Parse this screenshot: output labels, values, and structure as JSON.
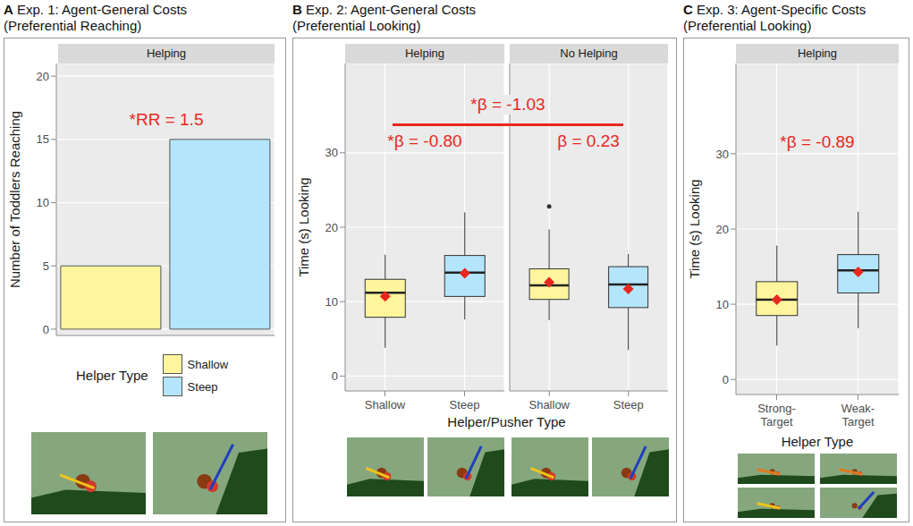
{
  "chart_data": [
    {
      "type": "bar",
      "label": "A",
      "title": "Exp. 1: Agent-General Costs",
      "subtitle": "(Preferential Reaching)",
      "facet": "Helping",
      "annotation": "*RR = 1.5",
      "ylabel": "Number of Toddlers Reaching",
      "categories": [
        "Shallow",
        "Steep"
      ],
      "values": [
        5,
        15
      ],
      "colors": [
        "#fff59d",
        "#b3e5fc"
      ],
      "ylim": [
        -0.5,
        21
      ],
      "yticks": [
        0,
        5,
        10,
        15,
        20
      ],
      "grid": true,
      "tick_labels": "y",
      "legend": "bottom",
      "legend_title": "Helper Type"
    },
    {
      "type": "boxplot",
      "label": "B",
      "title": "Exp. 2: Agent-General Costs",
      "subtitle": "(Preferential Looking)",
      "xlabel": "Helper/Pusher Type",
      "ylabel": "Time (s) Looking",
      "ylim": [
        -2,
        42
      ],
      "yticks": [
        0,
        10,
        20,
        30
      ],
      "grid": true,
      "colors": [
        "#fff59d",
        "#b3e5fc"
      ],
      "comparison": "*β = -1.03",
      "facets": [
        {
          "name": "Helping",
          "annotation": "*β = -0.80",
          "categories": [
            "Shallow",
            "Steep"
          ],
          "stats": [
            {
              "min": 3.8,
              "q1": 7.9,
              "median": 11.2,
              "q3": 13.0,
              "max": 16.3,
              "mean": 10.7,
              "outliers": []
            },
            {
              "min": 7.6,
              "q1": 10.7,
              "median": 13.9,
              "q3": 16.2,
              "max": 22.0,
              "mean": 13.8,
              "outliers": []
            }
          ]
        },
        {
          "name": "No Helping",
          "annotation": "β = 0.23",
          "categories": [
            "Shallow",
            "Steep"
          ],
          "stats": [
            {
              "min": 7.5,
              "q1": 10.3,
              "median": 12.2,
              "q3": 14.4,
              "max": 19.7,
              "mean": 12.6,
              "outliers": [
                22.8
              ]
            },
            {
              "min": 3.5,
              "q1": 9.2,
              "median": 12.3,
              "q3": 14.7,
              "max": 16.4,
              "mean": 11.7,
              "outliers": []
            }
          ]
        }
      ]
    },
    {
      "type": "boxplot",
      "label": "C",
      "title": "Exp. 3: Agent-Specific Costs",
      "subtitle": "(Preferential Looking)",
      "xlabel": "Helper Type",
      "ylabel": "Time (s) Looking",
      "ylim": [
        -2,
        42
      ],
      "yticks": [
        0,
        10,
        20,
        30
      ],
      "grid": true,
      "colors": [
        "#fff59d",
        "#b3e5fc"
      ],
      "facets": [
        {
          "name": "Helping",
          "annotation": "*β = -0.89",
          "categories": [
            "Strong-Target",
            "Weak-Target"
          ],
          "stats": [
            {
              "min": 4.5,
              "q1": 8.5,
              "median": 10.6,
              "q3": 13.0,
              "max": 17.8,
              "mean": 10.6,
              "outliers": []
            },
            {
              "min": 6.8,
              "q1": 11.5,
              "median": 14.5,
              "q3": 16.6,
              "max": 22.3,
              "mean": 14.3,
              "outliers": []
            }
          ]
        }
      ]
    }
  ]
}
